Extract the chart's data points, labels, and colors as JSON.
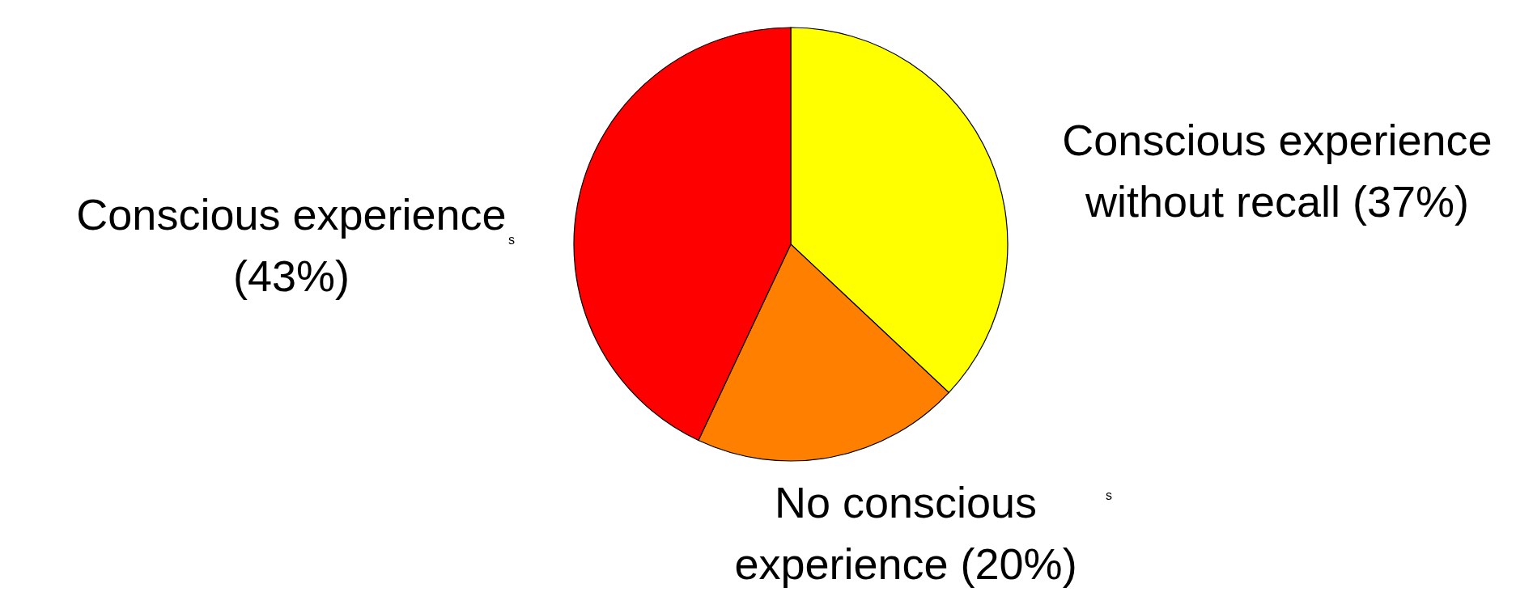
{
  "chart_data": {
    "type": "pie",
    "categories": [
      "Conscious experience without recall (37%)",
      "No conscious experience (20%)",
      "Conscious experience (43%)"
    ],
    "values": [
      37,
      20,
      43
    ],
    "colors": [
      "#ffff00",
      "#ff8000",
      "#ff0000"
    ],
    "annotations": [
      "s",
      "s"
    ]
  }
}
